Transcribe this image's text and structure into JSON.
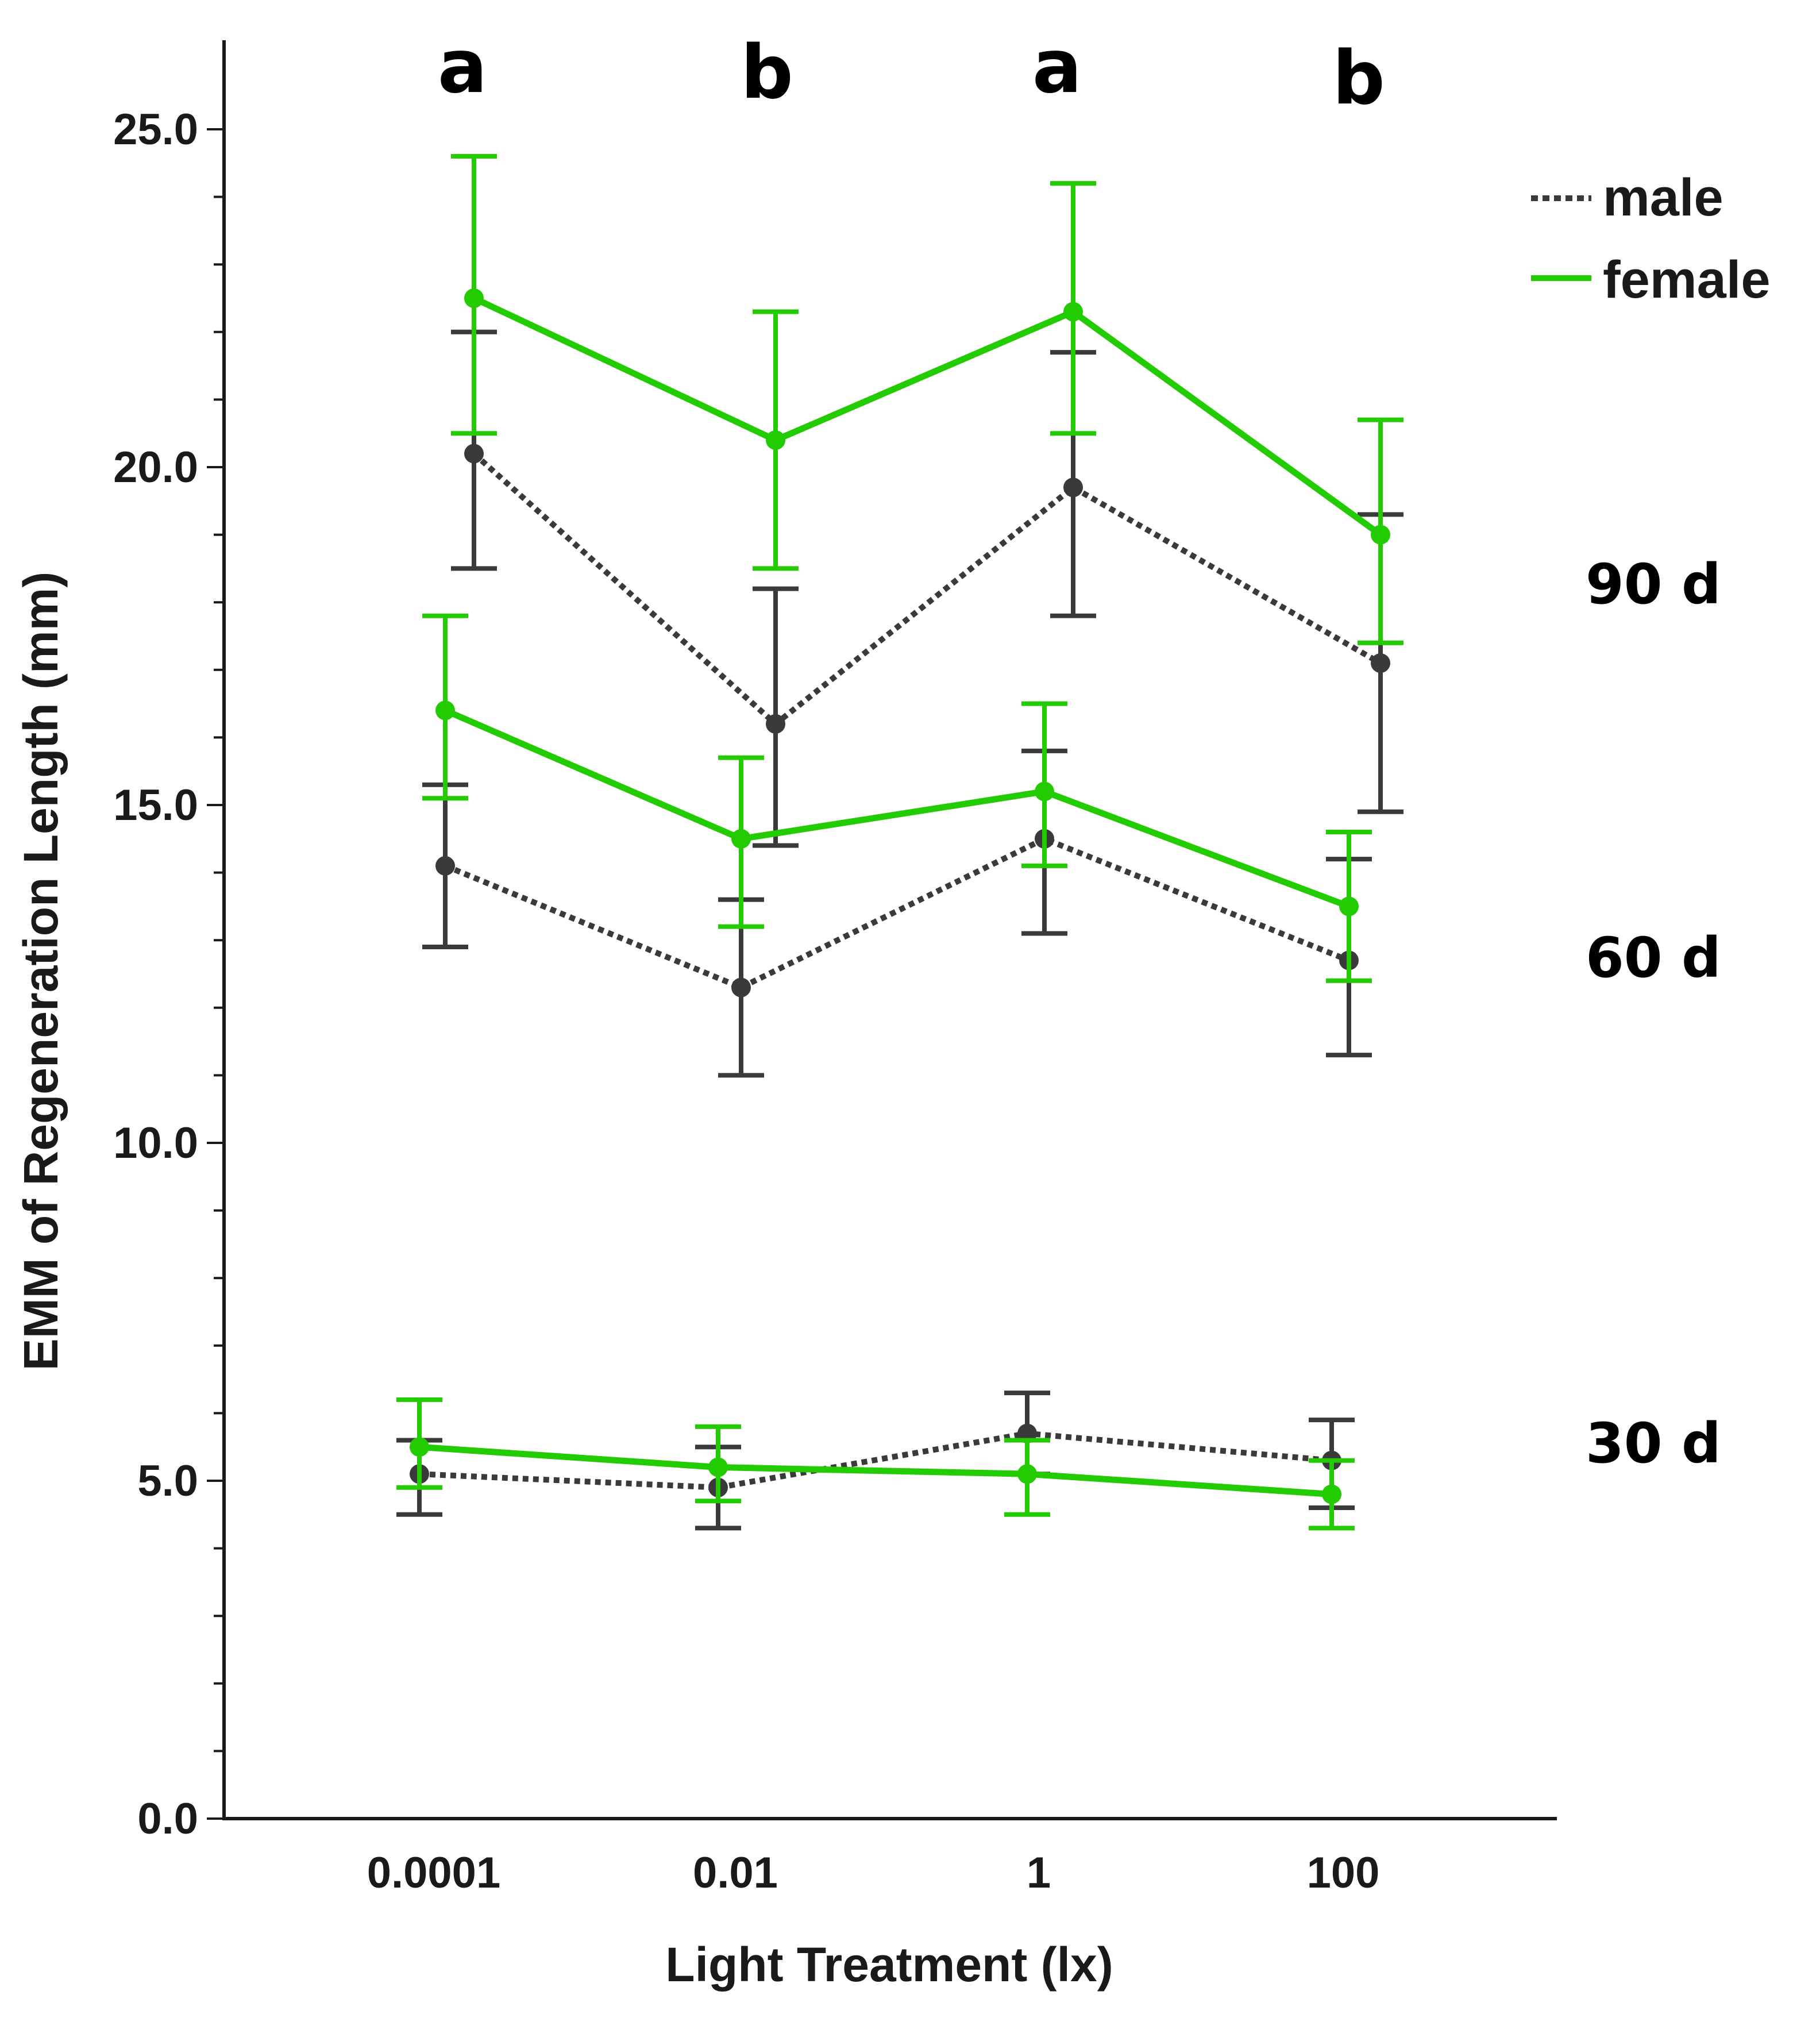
{
  "chart_data": {
    "type": "line",
    "title": "",
    "xlabel": "Light Treatment (lx)",
    "ylabel": "EMM of Regeneration Length (mm)",
    "ylim": [
      0,
      25
    ],
    "yticks": [
      "0.0",
      "5.0",
      "10.0",
      "15.0",
      "20.0",
      "25.0"
    ],
    "categories": [
      "0.0001",
      "0.01",
      "1",
      "100"
    ],
    "significance_letters": [
      "a",
      "b",
      "a",
      "b"
    ],
    "legend": {
      "placement": "top-right",
      "entries": [
        {
          "name": "male",
          "style": "dotted",
          "color": "#3a3a3a"
        },
        {
          "name": "female",
          "style": "solid",
          "color": "#22cc00"
        }
      ]
    },
    "groups": [
      {
        "label": "90 d",
        "series": [
          {
            "name": "male",
            "values": [
              20.2,
              16.2,
              19.7,
              17.1
            ],
            "err_low": [
              18.5,
              14.4,
              17.8,
              14.9
            ],
            "err_high": [
              22.0,
              18.2,
              21.7,
              19.3
            ]
          },
          {
            "name": "female",
            "values": [
              22.5,
              20.4,
              22.3,
              19.0
            ],
            "err_low": [
              20.5,
              18.5,
              20.5,
              17.4
            ],
            "err_high": [
              24.6,
              22.3,
              24.2,
              20.7
            ]
          }
        ]
      },
      {
        "label": "60 d",
        "series": [
          {
            "name": "male",
            "values": [
              14.1,
              12.3,
              14.5,
              12.7
            ],
            "err_low": [
              12.9,
              11.0,
              13.1,
              11.3
            ],
            "err_high": [
              15.3,
              13.6,
              15.8,
              14.2
            ]
          },
          {
            "name": "female",
            "values": [
              16.4,
              14.5,
              15.2,
              13.5
            ],
            "err_low": [
              15.1,
              13.2,
              14.1,
              12.4
            ],
            "err_high": [
              17.8,
              15.7,
              16.5,
              14.6
            ]
          }
        ]
      },
      {
        "label": "30 d",
        "series": [
          {
            "name": "male",
            "values": [
              5.1,
              4.9,
              5.7,
              5.3
            ],
            "err_low": [
              4.5,
              4.3,
              5.1,
              4.6
            ],
            "err_high": [
              5.6,
              5.5,
              6.3,
              5.9
            ]
          },
          {
            "name": "female",
            "values": [
              5.5,
              5.2,
              5.1,
              4.8
            ],
            "err_low": [
              4.9,
              4.7,
              4.5,
              4.3
            ],
            "err_high": [
              6.2,
              5.8,
              5.6,
              5.3
            ]
          }
        ]
      }
    ],
    "colors": {
      "male": "#3a3a3a",
      "female": "#22cc00",
      "axis": "#1a1a1a"
    }
  }
}
